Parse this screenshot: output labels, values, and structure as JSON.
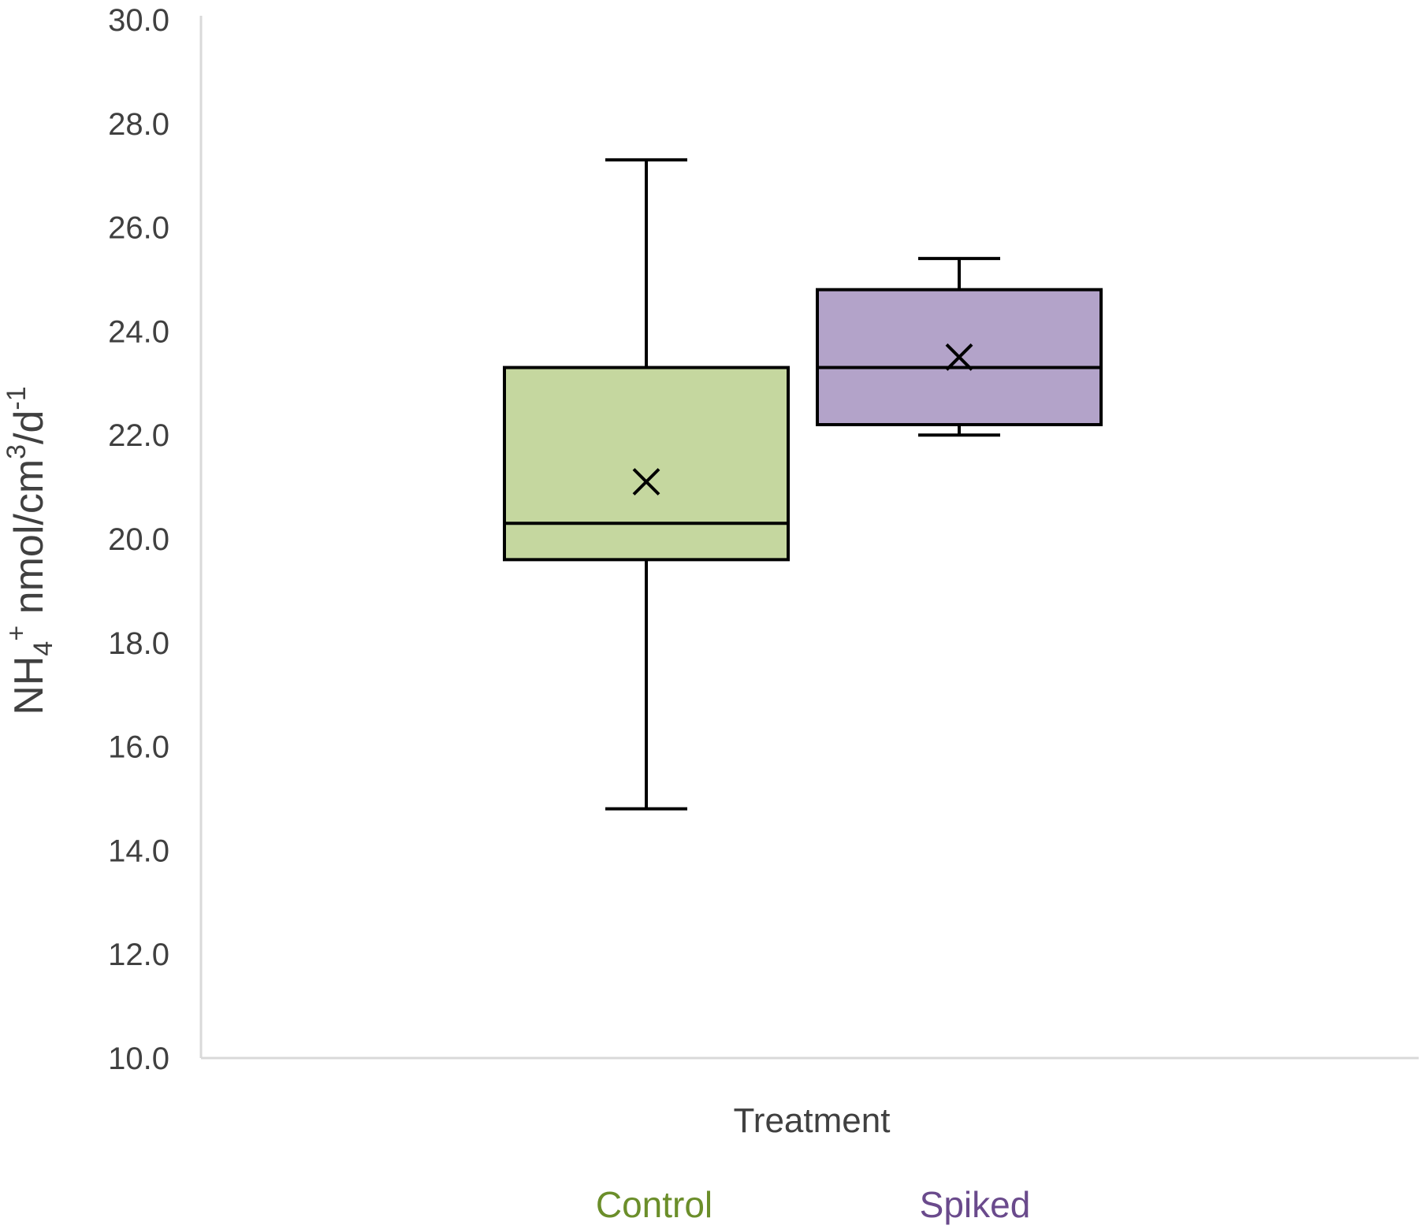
{
  "chart_data": {
    "type": "boxplot",
    "ylabel": {
      "parts": [
        {
          "text": "NH",
          "style": "normal"
        },
        {
          "text": "4",
          "style": "sub"
        },
        {
          "text": "+",
          "style": "super"
        },
        {
          "text": " nmol/cm",
          "style": "normal"
        },
        {
          "text": "3",
          "style": "super"
        },
        {
          "text": "/d",
          "style": "normal"
        },
        {
          "text": "-1",
          "style": "super"
        }
      ]
    },
    "xlabel": "Treatment",
    "ylim": [
      10.0,
      30.0
    ],
    "yticks": [
      "10.0",
      "12.0",
      "14.0",
      "16.0",
      "18.0",
      "20.0",
      "22.0",
      "24.0",
      "26.0",
      "28.0",
      "30.0"
    ],
    "grid": false,
    "legend_position": "bottom",
    "series": [
      {
        "name": "Control",
        "color": "#c5d79f",
        "legend_color": "#6b8e2a",
        "whisker_low": 14.8,
        "q1": 19.6,
        "median": 20.3,
        "q3": 23.3,
        "whisker_high": 27.3,
        "mean": 21.1
      },
      {
        "name": "Spiked",
        "color": "#b3a3c9",
        "legend_color": "#6a4a8c",
        "whisker_low": 22.0,
        "q1": 22.2,
        "median": 23.3,
        "q3": 24.8,
        "whisker_high": 25.4,
        "mean": 23.5
      }
    ]
  }
}
